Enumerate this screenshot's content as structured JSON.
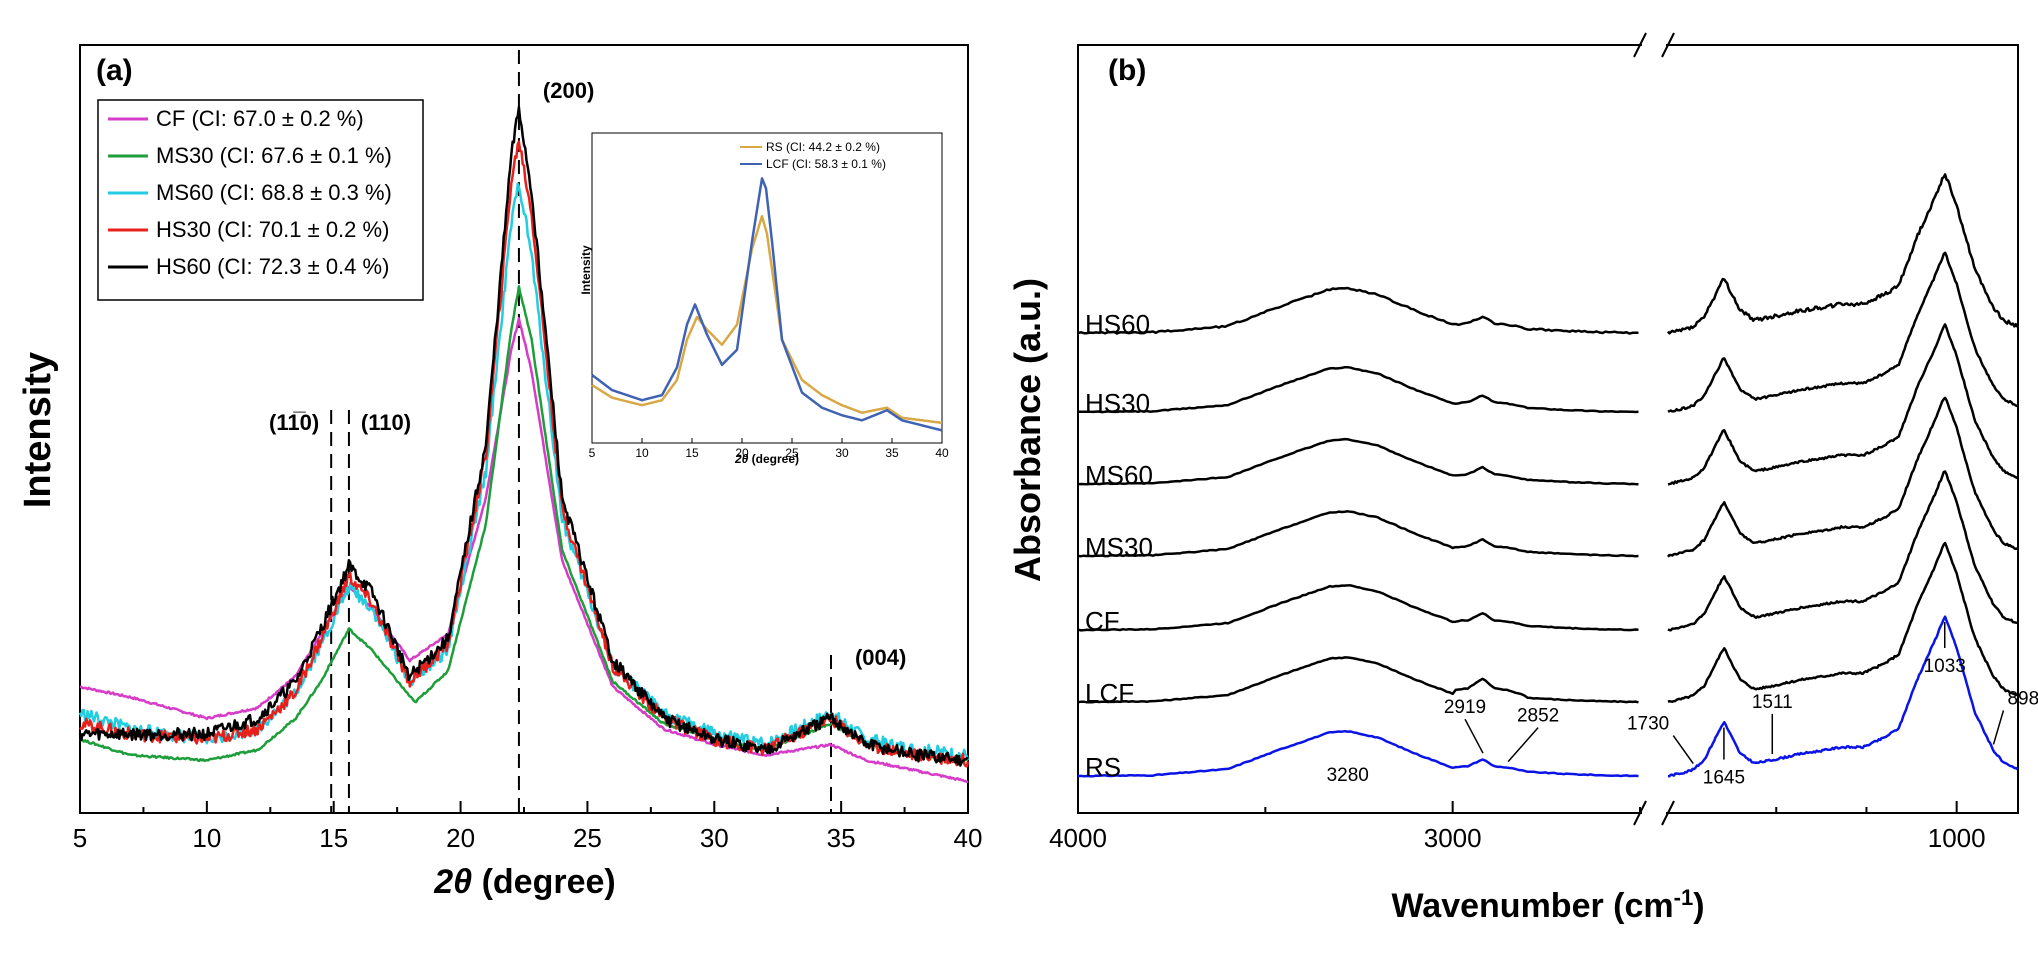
{
  "chart_data": [
    {
      "type": "line",
      "panel_label": "(a)",
      "xlabel_var": "2θ",
      "xlabel_unit": " (degree)",
      "ylabel": "Intensity",
      "xlim": [
        5,
        40
      ],
      "xticks": [
        5,
        10,
        15,
        20,
        25,
        30,
        35,
        40
      ],
      "grid": false,
      "legend_placement": "top-left",
      "peaks": [
        {
          "label": "(11̅0)",
          "x": 14.9
        },
        {
          "label": "(110)",
          "x": 15.6
        },
        {
          "label": "(200)",
          "x": 22.3
        },
        {
          "label": "(004)",
          "x": 34.6
        }
      ],
      "series": [
        {
          "name": "CF (CI: 67.0 ± 0.2 %)",
          "color": "#d63cc8",
          "x": [
            5,
            7,
            10,
            12,
            13.5,
            14.5,
            15.6,
            16.5,
            18,
            19.5,
            21,
            22,
            22.3,
            22.8,
            24,
            26,
            28,
            30,
            32,
            34.6,
            36,
            38,
            40
          ],
          "y": [
            0.14,
            0.12,
            0.08,
            0.1,
            0.16,
            0.24,
            0.33,
            0.29,
            0.19,
            0.24,
            0.5,
            0.78,
            0.84,
            0.74,
            0.38,
            0.14,
            0.06,
            0.03,
            0.01,
            0.03,
            0.0,
            -0.02,
            -0.04
          ]
        },
        {
          "name": "MS30 (CI: 67.6 ± 0.1 %)",
          "color": "#1e9e3a",
          "x": [
            5,
            7,
            10,
            12,
            13.5,
            14.5,
            15.6,
            16.5,
            18.2,
            19.5,
            21,
            22,
            22.3,
            22.8,
            24,
            26,
            28,
            30,
            32,
            34.6,
            36,
            38,
            40
          ],
          "y": [
            0.04,
            0.01,
            0.0,
            0.02,
            0.08,
            0.15,
            0.25,
            0.21,
            0.11,
            0.17,
            0.45,
            0.82,
            0.9,
            0.8,
            0.4,
            0.15,
            0.07,
            0.04,
            0.02,
            0.07,
            0.03,
            0.01,
            0.0
          ]
        },
        {
          "name": "MS60 (CI: 68.8 ± 0.3 %)",
          "color": "#22cde0",
          "x": [
            5,
            7,
            10,
            12,
            13.5,
            14.5,
            15.6,
            16.5,
            18,
            19.5,
            21,
            22,
            22.3,
            22.8,
            24,
            26,
            28,
            30,
            32,
            34.6,
            36,
            38,
            40
          ],
          "y": [
            0.09,
            0.06,
            0.04,
            0.06,
            0.13,
            0.22,
            0.33,
            0.29,
            0.15,
            0.21,
            0.55,
            1.02,
            1.1,
            0.96,
            0.46,
            0.18,
            0.09,
            0.05,
            0.03,
            0.09,
            0.04,
            0.02,
            0.01
          ]
        },
        {
          "name": "HS30 (CI: 70.1 ± 0.2 %)",
          "color": "#e8201c",
          "x": [
            5,
            7,
            10,
            12,
            13.5,
            14.5,
            15.6,
            16.5,
            18,
            19.5,
            21,
            22,
            22.3,
            22.8,
            24,
            26,
            28,
            30,
            32,
            34.6,
            36,
            38,
            40
          ],
          "y": [
            0.07,
            0.05,
            0.04,
            0.06,
            0.13,
            0.23,
            0.35,
            0.3,
            0.15,
            0.22,
            0.58,
            1.1,
            1.18,
            1.04,
            0.48,
            0.18,
            0.08,
            0.04,
            0.02,
            0.08,
            0.03,
            0.01,
            0.0
          ]
        },
        {
          "name": "HS60 (CI: 72.3 ± 0.4 %)",
          "color": "#000000",
          "x": [
            5,
            7,
            10,
            12,
            13.5,
            14.5,
            15.6,
            16.5,
            18,
            19.5,
            21,
            22,
            22.3,
            22.8,
            24,
            26,
            28,
            30,
            32,
            34.6,
            36,
            38,
            40
          ],
          "y": [
            0.05,
            0.05,
            0.05,
            0.08,
            0.15,
            0.25,
            0.37,
            0.32,
            0.16,
            0.23,
            0.6,
            1.15,
            1.24,
            1.08,
            0.5,
            0.19,
            0.08,
            0.04,
            0.02,
            0.08,
            0.03,
            0.01,
            0.0
          ]
        }
      ],
      "inset": {
        "type": "line",
        "ylabel": "Intensity",
        "xlabel_var": "2θ",
        "xlabel_unit": " (degree)",
        "xlim": [
          5,
          40
        ],
        "xticks": [
          5,
          10,
          15,
          20,
          25,
          30,
          35,
          40
        ],
        "legend_placement": "top-center",
        "series": [
          {
            "name": "RS (CI: 44.2 ± 0.2 %)",
            "color": "#d9a846",
            "x": [
              5,
              7,
              10,
              12,
              13.5,
              14.5,
              15.5,
              16.5,
              18,
              19.5,
              21,
              22,
              22.5,
              24,
              26,
              28,
              30,
              32,
              34.5,
              36,
              38,
              40
            ],
            "y": [
              0.18,
              0.13,
              0.1,
              0.12,
              0.2,
              0.36,
              0.45,
              0.4,
              0.34,
              0.42,
              0.72,
              0.85,
              0.78,
              0.36,
              0.2,
              0.14,
              0.1,
              0.07,
              0.09,
              0.05,
              0.04,
              0.03
            ]
          },
          {
            "name": "LCF (CI: 58.3 ± 0.1 %)",
            "color": "#3f63b2",
            "x": [
              5,
              7,
              10,
              12,
              13.5,
              14.5,
              15.3,
              16.5,
              18,
              19.5,
              21,
              22,
              22.4,
              23,
              24,
              26,
              28,
              30,
              32,
              34.5,
              36,
              38,
              40
            ],
            "y": [
              0.22,
              0.16,
              0.12,
              0.14,
              0.25,
              0.42,
              0.5,
              0.38,
              0.26,
              0.32,
              0.75,
              1.0,
              0.96,
              0.75,
              0.36,
              0.15,
              0.09,
              0.06,
              0.04,
              0.08,
              0.04,
              0.02,
              0.0
            ]
          }
        ]
      }
    },
    {
      "type": "line",
      "panel_label": "(b)",
      "xlabel_main": "Wavenumber (cm",
      "xlabel_sup": "-1",
      "xlabel_end": ")",
      "ylabel": "Absorbance (a.u.)",
      "axis_break": [
        2500,
        1800
      ],
      "xtick_labels": [
        "4000",
        "3000",
        "1000"
      ],
      "xticks": [
        4000,
        3000,
        1000
      ],
      "reversed_x": true,
      "grid": false,
      "series": [
        {
          "name": "HS60",
          "color": "#000000",
          "baseline": 6
        },
        {
          "name": "HS30",
          "color": "#000000",
          "baseline": 5
        },
        {
          "name": "MS60",
          "color": "#000000",
          "baseline": 4
        },
        {
          "name": "MS30",
          "color": "#000000",
          "baseline": 3
        },
        {
          "name": "CF",
          "color": "#000000",
          "baseline": 2
        },
        {
          "name": "LCF",
          "color": "#000000",
          "baseline": 1
        },
        {
          "name": "RS",
          "color": "#0a14e6",
          "baseline": 0
        }
      ],
      "peak_profiles": {
        "x_high": [
          4000,
          3800,
          3600,
          3450,
          3330,
          3280,
          3200,
          3100,
          3000,
          2960,
          2919,
          2890,
          2852,
          2800,
          2700,
          2600,
          2500
        ],
        "y_high": [
          0.0,
          0.01,
          0.1,
          0.4,
          0.62,
          0.64,
          0.55,
          0.32,
          0.12,
          0.14,
          0.24,
          0.14,
          0.12,
          0.06,
          0.03,
          0.01,
          0.0
        ],
        "x_low": [
          1800,
          1760,
          1730,
          1700,
          1645,
          1600,
          1560,
          1511,
          1470,
          1430,
          1370,
          1320,
          1260,
          1200,
          1160,
          1110,
          1060,
          1033,
          1000,
          950,
          898,
          870,
          830
        ],
        "y_low": [
          0.0,
          0.02,
          0.04,
          0.1,
          0.34,
          0.14,
          0.08,
          0.1,
          0.12,
          0.14,
          0.16,
          0.18,
          0.18,
          0.24,
          0.3,
          0.6,
          0.85,
          1.0,
          0.8,
          0.4,
          0.16,
          0.08,
          0.04
        ]
      },
      "annotations": [
        {
          "label": "3280",
          "x": 3280
        },
        {
          "label": "2919",
          "x": 2919
        },
        {
          "label": "2852",
          "x": 2852
        },
        {
          "label": "1730",
          "x": 1730
        },
        {
          "label": "1645",
          "x": 1645
        },
        {
          "label": "1511",
          "x": 1511
        },
        {
          "label": "1033",
          "x": 1033
        },
        {
          "label": "898",
          "x": 898
        }
      ]
    }
  ]
}
